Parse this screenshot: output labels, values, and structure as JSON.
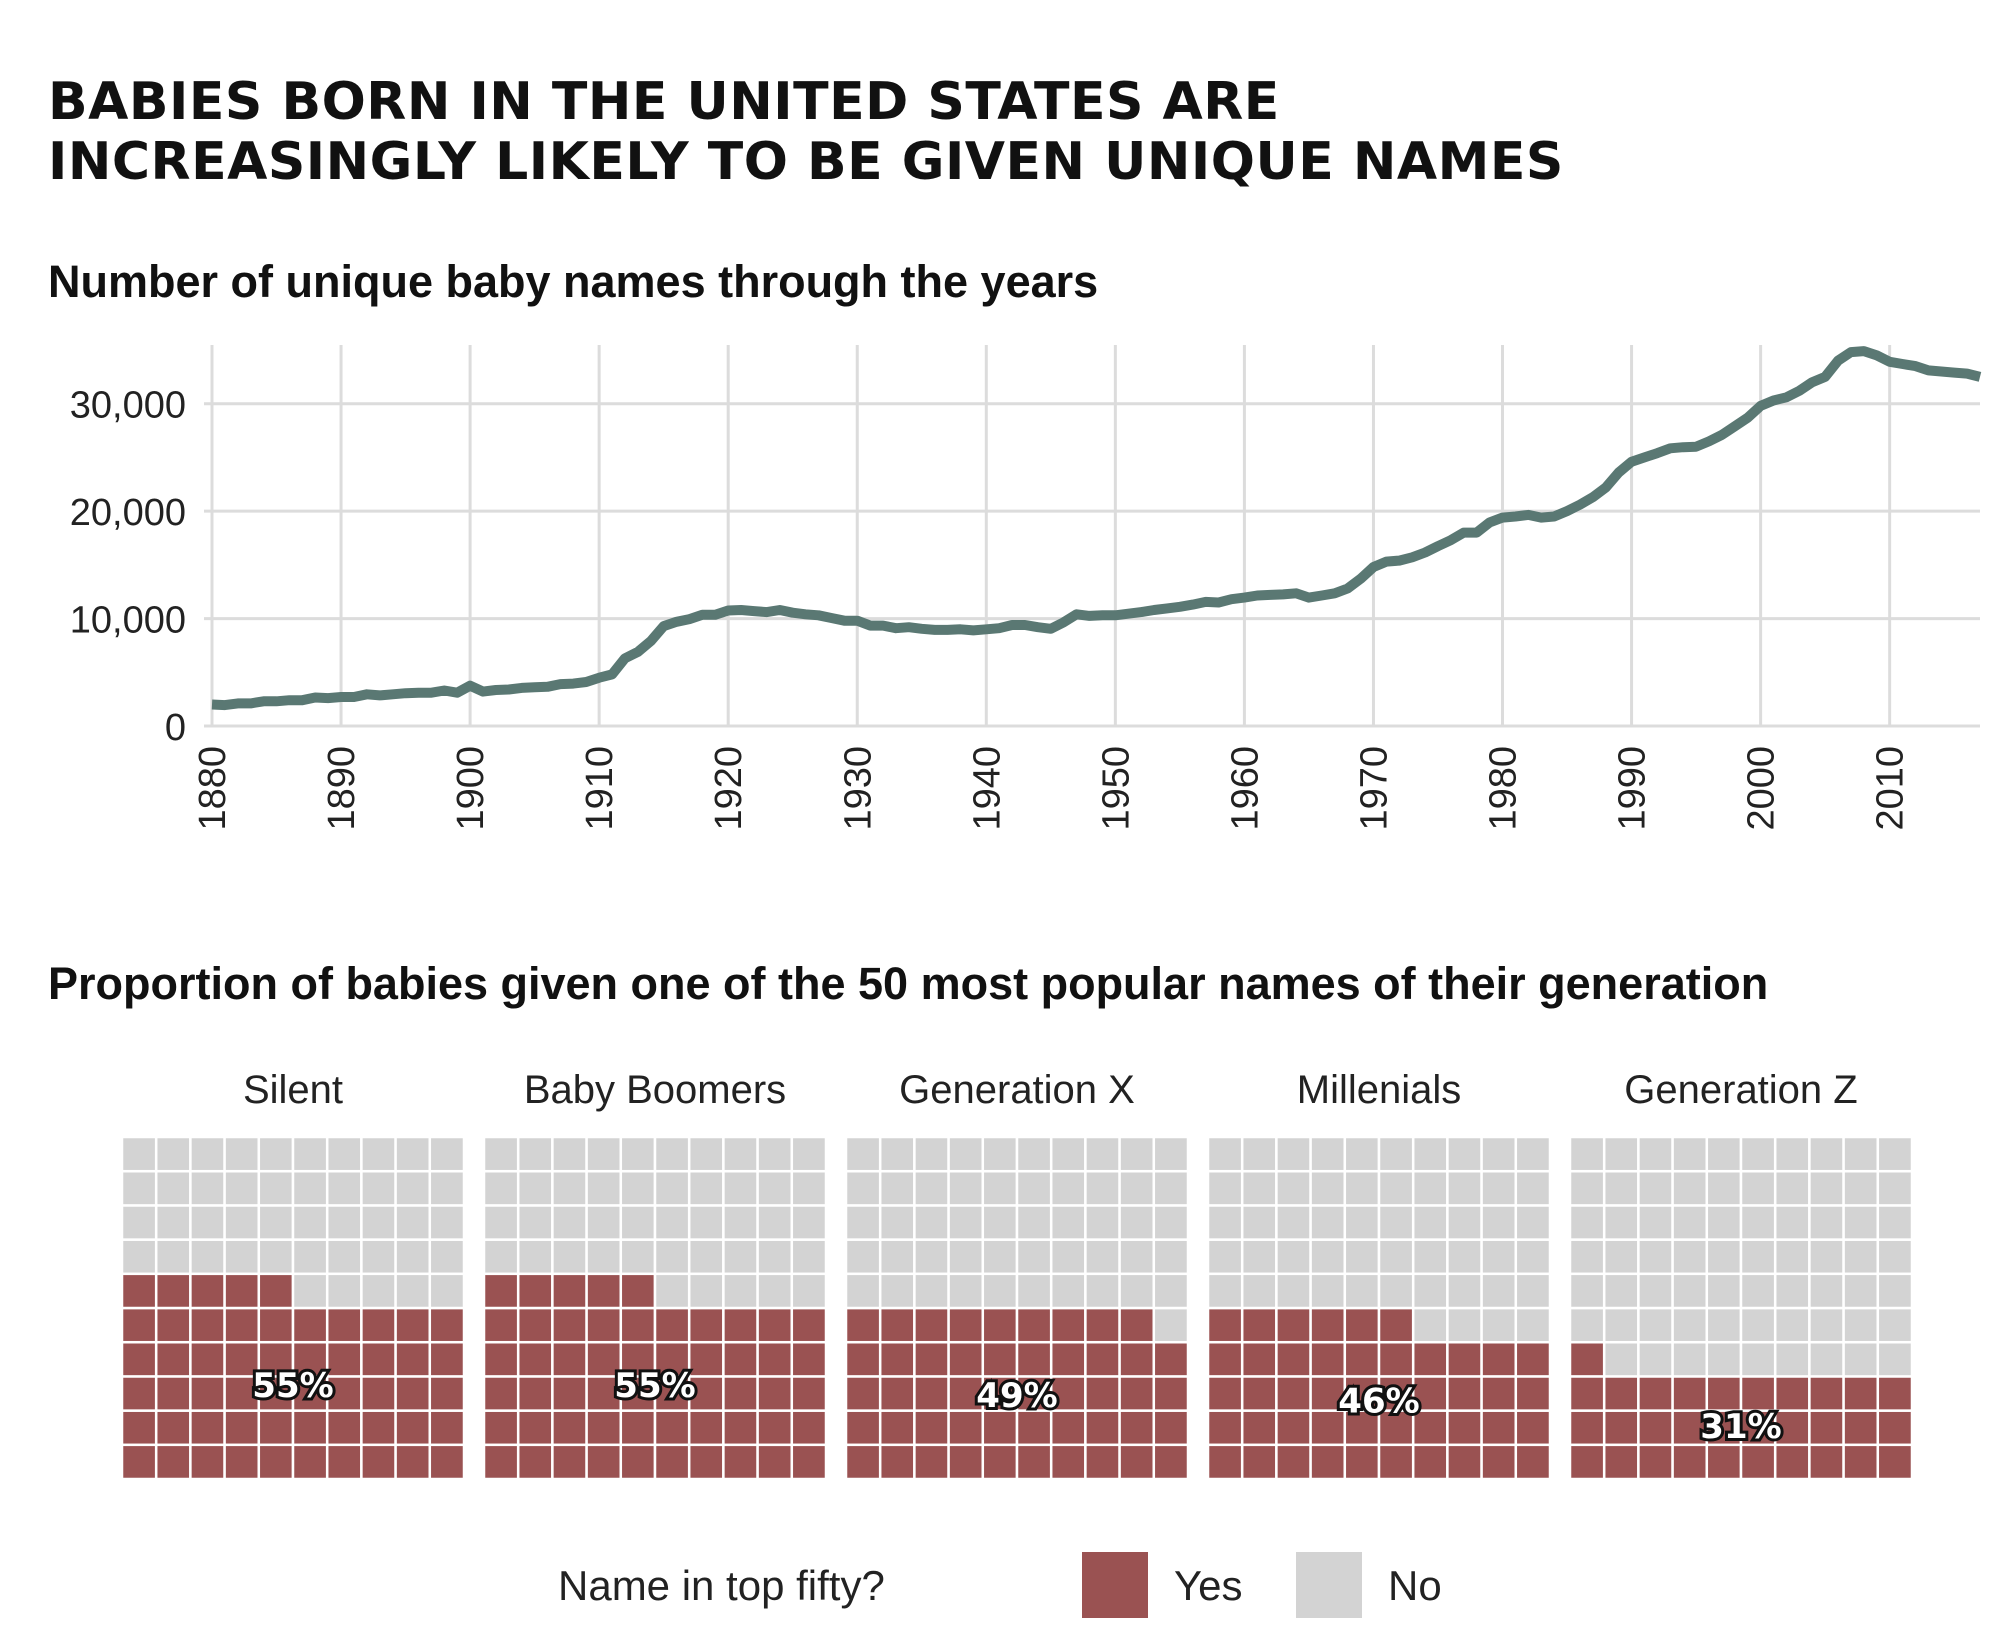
{
  "title": {
    "line1": "BABIES BORN IN THE UNITED STATES ARE",
    "line2": "INCREASINGLY LIKELY TO BE GIVEN UNIQUE NAMES"
  },
  "colors": {
    "line": "#5a7873",
    "yes": "#9a5252",
    "no": "#d3d3d3",
    "grid": "#dcdcdc"
  },
  "chart_data": [
    {
      "type": "line",
      "title": "Number of unique baby names through the years",
      "xlabel": "",
      "ylabel": "",
      "xlim": [
        1880,
        2017
      ],
      "ylim": [
        0,
        35000
      ],
      "x_ticks": [
        1880,
        1890,
        1900,
        1910,
        1920,
        1930,
        1940,
        1950,
        1960,
        1970,
        1980,
        1990,
        2000,
        2010
      ],
      "y_ticks": [
        0,
        10000,
        20000,
        30000
      ],
      "y_tick_labels": [
        "0",
        "10,000",
        "20,000",
        "30,000"
      ],
      "grid": true,
      "x": [
        1880,
        1881,
        1882,
        1883,
        1884,
        1885,
        1886,
        1887,
        1888,
        1889,
        1890,
        1891,
        1892,
        1893,
        1894,
        1895,
        1896,
        1897,
        1898,
        1899,
        1900,
        1901,
        1902,
        1903,
        1904,
        1905,
        1906,
        1907,
        1908,
        1909,
        1910,
        1911,
        1912,
        1913,
        1914,
        1915,
        1916,
        1917,
        1918,
        1919,
        1920,
        1921,
        1922,
        1923,
        1924,
        1925,
        1926,
        1927,
        1928,
        1929,
        1930,
        1931,
        1932,
        1933,
        1934,
        1935,
        1936,
        1937,
        1938,
        1939,
        1940,
        1941,
        1942,
        1943,
        1944,
        1945,
        1946,
        1947,
        1948,
        1949,
        1950,
        1951,
        1952,
        1953,
        1954,
        1955,
        1956,
        1957,
        1958,
        1959,
        1960,
        1961,
        1962,
        1963,
        1964,
        1965,
        1966,
        1967,
        1968,
        1969,
        1970,
        1971,
        1972,
        1973,
        1974,
        1975,
        1976,
        1977,
        1978,
        1979,
        1980,
        1981,
        1982,
        1983,
        1984,
        1985,
        1986,
        1987,
        1988,
        1989,
        1990,
        1991,
        1992,
        1993,
        1994,
        1995,
        1996,
        1997,
        1998,
        1999,
        2000,
        2001,
        2002,
        2003,
        2004,
        2005,
        2006,
        2007,
        2008,
        2009,
        2010,
        2011,
        2012,
        2013,
        2014,
        2015,
        2016,
        2017
      ],
      "y": [
        2000,
        1950,
        2100,
        2100,
        2300,
        2300,
        2400,
        2400,
        2650,
        2600,
        2700,
        2700,
        2950,
        2850,
        2950,
        3050,
        3100,
        3100,
        3300,
        3100,
        3750,
        3200,
        3350,
        3400,
        3550,
        3600,
        3650,
        3900,
        3950,
        4100,
        4500,
        4800,
        6300,
        6900,
        7900,
        9300,
        9700,
        9950,
        10350,
        10350,
        10750,
        10800,
        10700,
        10600,
        10800,
        10550,
        10400,
        10300,
        10050,
        9800,
        9800,
        9350,
        9350,
        9100,
        9200,
        9050,
        8950,
        8950,
        9000,
        8900,
        9000,
        9100,
        9400,
        9400,
        9200,
        9050,
        9650,
        10400,
        10250,
        10300,
        10300,
        10450,
        10600,
        10800,
        10950,
        11100,
        11300,
        11550,
        11500,
        11800,
        11950,
        12150,
        12200,
        12250,
        12350,
        11950,
        12150,
        12350,
        12800,
        13700,
        14800,
        15300,
        15400,
        15700,
        16150,
        16750,
        17300,
        18000,
        18000,
        18950,
        19400,
        19500,
        19650,
        19400,
        19500,
        20000,
        20600,
        21300,
        22200,
        23600,
        24600,
        25000,
        25400,
        25850,
        25950,
        26000,
        26500,
        27100,
        27900,
        28700,
        29800,
        30300,
        30600,
        31200,
        32000,
        32500,
        34000,
        34800,
        34900,
        34500,
        33900,
        33700,
        33500,
        33100,
        33000,
        32900,
        32800,
        32500
      ],
      "series_name": ""
    },
    {
      "type": "waffle",
      "title": "Proportion of babies given one of the 50 most popular names of their generation",
      "legend_title": "Name in top fifty?",
      "legend": [
        "Yes",
        "No"
      ],
      "legend_position": "bottom",
      "grid_cols": 10,
      "grid_rows": 10,
      "categories": [
        "Silent",
        "Baby Boomers",
        "Generation X",
        "Millenials",
        "Generation Z"
      ],
      "values": [
        55,
        55,
        49,
        46,
        31
      ],
      "value_labels": [
        "55%",
        "55%",
        "49%",
        "46%",
        "31%"
      ]
    }
  ]
}
